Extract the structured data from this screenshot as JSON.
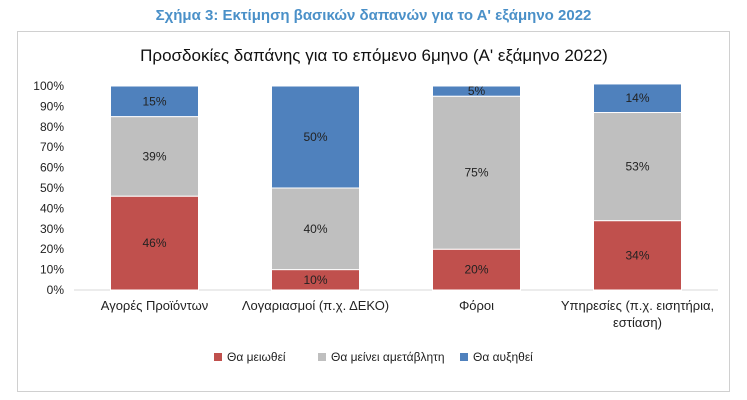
{
  "figure_caption": "Σχήμα 3: Εκτίμηση βασικών δαπανών για το Α' εξάμηνο 2022",
  "chart_data": {
    "type": "bar",
    "stacked": true,
    "title": "Προσδοκίες δαπάνης για το επόμενο 6μηνο (Α' εξάμηνο 2022)",
    "categories": [
      [
        "Αγορές Προϊόντων"
      ],
      [
        "Λογαριασμοί (π.χ. ΔΕΚΟ)"
      ],
      [
        "Φόροι"
      ],
      [
        "Υπηρεσίες (π.χ. εισητήρια,",
        "εστίαση)"
      ]
    ],
    "series": [
      {
        "name": "Θα μειωθεί",
        "color": "#c0504d",
        "values": [
          46,
          10,
          20,
          34
        ]
      },
      {
        "name": "Θα μείνει αμετάβλητη",
        "color": "#bfbfbf",
        "values": [
          39,
          40,
          75,
          53
        ]
      },
      {
        "name": "Θα αυξηθεί",
        "color": "#4f81bd",
        "values": [
          15,
          50,
          5,
          14
        ]
      }
    ],
    "value_suffix": "%",
    "ylim": [
      0,
      100
    ],
    "yticks": [
      "0%",
      "10%",
      "20%",
      "30%",
      "40%",
      "50%",
      "60%",
      "70%",
      "80%",
      "90%",
      "100%"
    ],
    "legend_position": "bottom",
    "grid": false
  }
}
